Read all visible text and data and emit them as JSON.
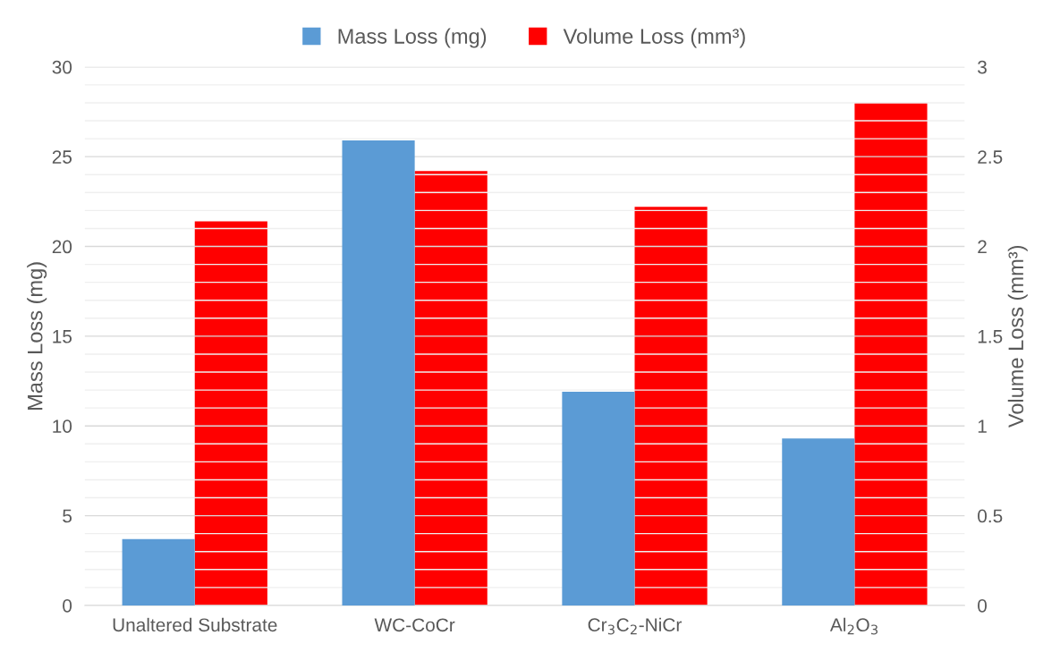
{
  "chart_data": {
    "type": "bar",
    "categories": [
      "Unaltered Substrate",
      "WC-CoCr",
      "Cr$_{3}$C$_{2}$-NiCr",
      "Al$_{2}$O$_{3}$"
    ],
    "series": [
      {
        "name": "Mass Loss (mg)",
        "color": "#5b9bd5",
        "values": [
          3.7,
          25.9,
          11.9,
          9.3
        ]
      },
      {
        "name": "Volume Loss (mm³)",
        "color": "#ff0000",
        "axis": "y2",
        "values": [
          2.14,
          2.42,
          2.22,
          2.8
        ]
      }
    ],
    "ylabel": "Mass Loss (mg)",
    "y2label": "Volume Loss (mm³)",
    "ylim": [
      0,
      30
    ],
    "yticks": [
      0,
      {
        "value": 1,
        "label": null
      },
      {
        "value": 2,
        "label": null
      },
      {
        "value": 3,
        "label": null
      },
      {
        "value": 4,
        "label": null
      },
      5,
      {
        "value": 6,
        "label": null
      },
      {
        "value": 7,
        "label": null
      },
      {
        "value": 8,
        "label": null
      },
      {
        "value": 9,
        "label": null
      },
      10,
      {
        "value": 11,
        "label": null
      },
      {
        "value": 12,
        "label": null
      },
      {
        "value": 13,
        "label": null
      },
      {
        "value": 14,
        "label": null
      },
      15,
      {
        "value": 16,
        "label": null
      },
      {
        "value": 17,
        "label": null
      },
      {
        "value": 18,
        "label": null
      },
      {
        "value": 19,
        "label": null
      },
      20,
      {
        "value": 21,
        "label": null
      },
      {
        "value": 22,
        "label": null
      },
      {
        "value": 23,
        "label": null
      },
      {
        "value": 24,
        "label": null
      },
      25,
      {
        "value": 26,
        "label": null
      },
      {
        "value": 27,
        "label": null
      },
      {
        "value": 28,
        "label": null
      },
      {
        "value": 29,
        "label": null
      },
      30
    ],
    "y2lim": [
      0,
      3
    ],
    "y2ticks": [
      0,
      0.5,
      1,
      1.5,
      2,
      2.5,
      3
    ],
    "grid": "y",
    "legend": "top"
  }
}
